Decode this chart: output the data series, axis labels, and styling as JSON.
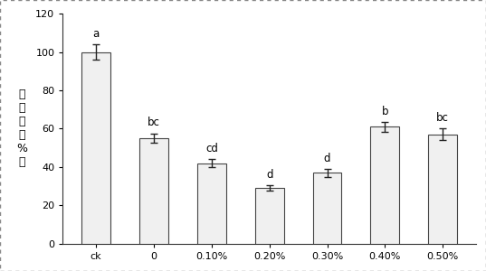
{
  "categories": [
    "ck",
    "0",
    "0.10%",
    "0.20%",
    "0.30%",
    "0.40%",
    "0.50%"
  ],
  "values": [
    100,
    55,
    42,
    29,
    37,
    61,
    57
  ],
  "errors": [
    4,
    2.5,
    2,
    1.5,
    2,
    2.5,
    3
  ],
  "sig_labels": [
    "a",
    "bc",
    "cd",
    "d",
    "d",
    "b",
    "bc"
  ],
  "ylim": [
    0,
    120
  ],
  "yticks": [
    0,
    20,
    40,
    60,
    80,
    100,
    120
  ],
  "bar_color": "#f0f0f0",
  "bar_edgecolor": "#444444",
  "error_color": "#222222",
  "label_fontsize": 8.5,
  "tick_fontsize": 8,
  "ylabel_fontsize": 9,
  "bar_width": 0.5,
  "figure_border_color": "#aaaaaa"
}
